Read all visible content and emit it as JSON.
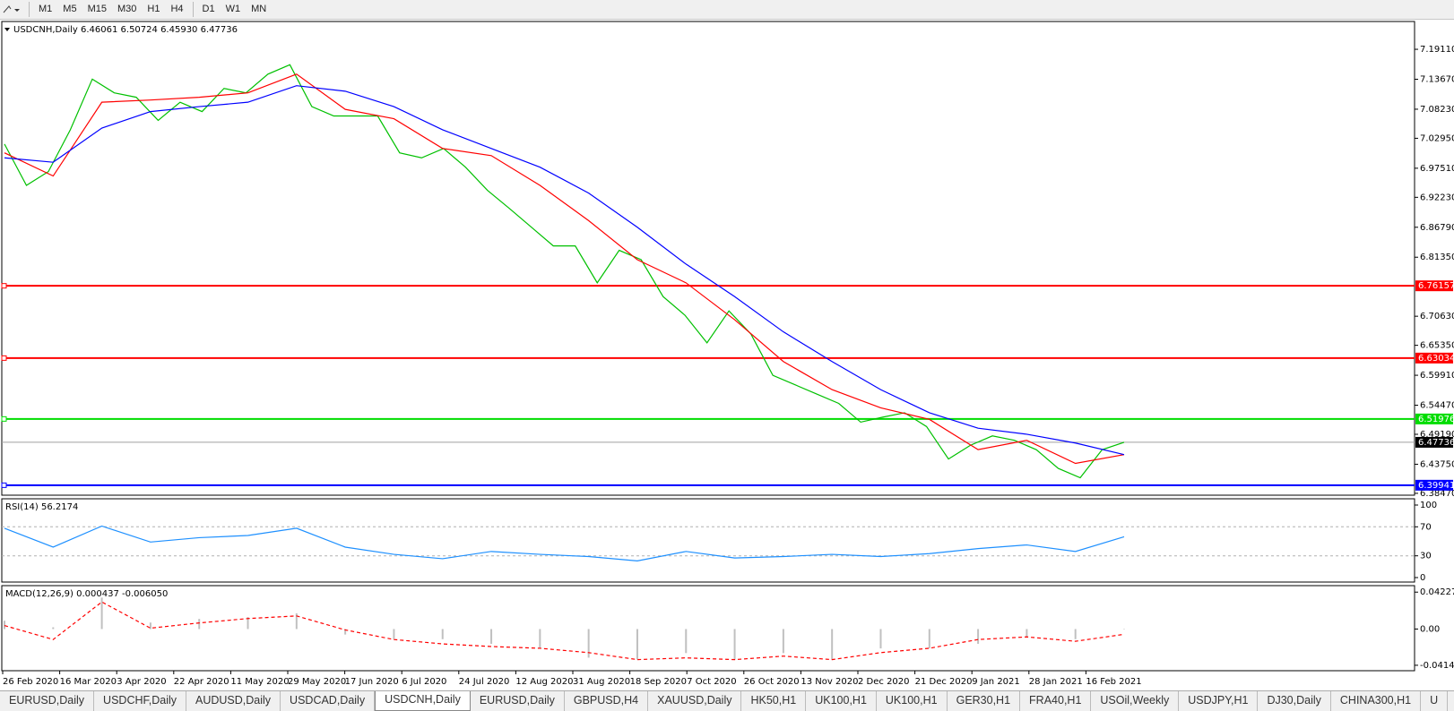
{
  "toolbar": {
    "timeframes": [
      "M1",
      "M5",
      "M15",
      "M30",
      "H1",
      "H4",
      "D1",
      "W1",
      "MN"
    ]
  },
  "time_axis": {
    "labels": [
      "26 Feb 2020",
      "16 Mar 2020",
      "3 Apr 2020",
      "22 Apr 2020",
      "11 May 2020",
      "29 May 2020",
      "17 Jun 2020",
      "6 Jul 2020",
      "24 Jul 2020",
      "12 Aug 2020",
      "31 Aug 2020",
      "18 Sep 2020",
      "7 Oct 2020",
      "26 Oct 2020",
      "13 Nov 2020",
      "2 Dec 2020",
      "21 Dec 2020",
      "9 Jan 2021",
      "28 Jan 2021",
      "16 Feb 2021"
    ]
  },
  "chart_data": [
    {
      "type": "line",
      "title": "USDCNH,Daily",
      "ohlc": "6.46061 6.50724 6.45930 6.47736",
      "ylim": [
        6.3813,
        7.2416
      ],
      "yticks": [
        {
          "value": 7.1911,
          "label": "7.19110"
        },
        {
          "value": 7.1367,
          "label": "7.13670"
        },
        {
          "value": 7.0823,
          "label": "7.08230"
        },
        {
          "value": 7.0295,
          "label": "7.02950"
        },
        {
          "value": 6.9751,
          "label": "6.97510"
        },
        {
          "value": 6.9223,
          "label": "6.92230"
        },
        {
          "value": 6.8679,
          "label": "6.86790"
        },
        {
          "value": 6.8135,
          "label": "6.81350"
        },
        {
          "value": 6.7063,
          "label": "6.70630"
        },
        {
          "value": 6.6535,
          "label": "6.65350"
        },
        {
          "value": 6.5991,
          "label": "6.59910"
        },
        {
          "value": 6.5447,
          "label": "6.54470"
        },
        {
          "value": 6.4919,
          "label": "6.49190"
        },
        {
          "value": 6.4375,
          "label": "6.43750"
        },
        {
          "value": 6.3847,
          "label": "6.38470"
        }
      ],
      "levels": [
        {
          "value": 6.76157,
          "color": "#ff0000"
        },
        {
          "value": 6.63034,
          "color": "#ff0000"
        },
        {
          "value": 6.51976,
          "color": "#00dd00"
        },
        {
          "value": 6.47736,
          "color": "#000000"
        },
        {
          "value": 6.39941,
          "color": "#0000ff"
        }
      ],
      "series": [
        {
          "color": "#00c000",
          "values": [
            7.019,
            6.944,
            6.969,
            7.045,
            7.137,
            7.112,
            7.104,
            7.062,
            7.095,
            7.078,
            7.12,
            7.112,
            7.146,
            7.163,
            7.087,
            7.07,
            7.07,
            7.07,
            7.003,
            6.994,
            7.011,
            6.977,
            6.935,
            6.902,
            6.868,
            6.834,
            6.834,
            6.767,
            6.826,
            6.809,
            6.742,
            6.708,
            6.658,
            6.716,
            6.674,
            6.599,
            6.582,
            6.565,
            6.548,
            6.514,
            6.523,
            6.531,
            6.506,
            6.447,
            6.472,
            6.489,
            6.481,
            6.464,
            6.43,
            6.413,
            6.464,
            6.47736
          ]
        },
        {
          "color": "#ff0000",
          "values": [
            7.003,
            6.961,
            7.095,
            7.099,
            7.104,
            7.112,
            7.146,
            7.082,
            7.065,
            7.011,
            6.998,
            6.944,
            6.88,
            6.809,
            6.767,
            6.7,
            6.624,
            6.573,
            6.54,
            6.519,
            6.464,
            6.481,
            6.439,
            6.455
          ]
        },
        {
          "color": "#0000ff",
          "values": [
            6.994,
            6.986,
            7.048,
            7.078,
            7.087,
            7.095,
            7.125,
            7.115,
            7.087,
            7.045,
            7.011,
            6.977,
            6.93,
            6.868,
            6.801,
            6.742,
            6.678,
            6.624,
            6.573,
            6.531,
            6.503,
            6.492,
            6.476,
            6.455
          ]
        }
      ]
    },
    {
      "type": "line",
      "title": "RSI(14) 56.2174",
      "ylim": [
        0,
        100
      ],
      "yticks": [
        100,
        70,
        30,
        0
      ],
      "levels": [
        {
          "value": 70,
          "color": "#b0b0b0"
        },
        {
          "value": 30,
          "color": "#b0b0b0"
        }
      ],
      "series": [
        {
          "color": "#1e90ff",
          "values": [
            68,
            42,
            71,
            49,
            55,
            58,
            68,
            42,
            32,
            26,
            36,
            32,
            29,
            23,
            36,
            27,
            29,
            32,
            29,
            33,
            40,
            45,
            36,
            56.2174
          ]
        }
      ]
    },
    {
      "type": "macd",
      "title": "MACD(12,26,9) 0.000437 -0.006050",
      "ylim": [
        -0.0477,
        0.0497
      ],
      "yticks": [
        0.042275,
        {
          "value": 0,
          "label": "0.00"
        },
        -0.04148
      ],
      "series": [
        {
          "type": "bar",
          "color": "#c0c0c0",
          "values": [
            0.0095,
            0.002,
            0.036,
            0.0074,
            0.0116,
            0.0137,
            0.018,
            -0.0063,
            -0.0116,
            -0.0116,
            -0.0169,
            -0.0222,
            -0.0328,
            -0.0349,
            -0.0275,
            -0.0349,
            -0.0275,
            -0.0349,
            -0.0222,
            -0.0222,
            -0.0169,
            -0.0095,
            -0.0116,
            0.000437
          ]
        },
        {
          "type": "dashed",
          "color": "#ff0000",
          "values": [
            0.004,
            -0.012,
            0.031,
            0.001,
            0.007,
            0.012,
            0.015,
            -0.001,
            -0.012,
            -0.017,
            -0.02,
            -0.022,
            -0.027,
            -0.035,
            -0.033,
            -0.035,
            -0.031,
            -0.035,
            -0.027,
            -0.022,
            -0.012,
            -0.009,
            -0.014,
            -0.00605
          ]
        }
      ]
    }
  ],
  "tabs": [
    "EURUSD,Daily",
    "USDCHF,Daily",
    "AUDUSD,Daily",
    "USDCAD,Daily",
    "USDCNH,Daily",
    "EURUSD,Daily",
    "GBPUSD,H4",
    "XAUUSD,Daily",
    "HK50,H1",
    "UK100,H1",
    "UK100,H1",
    "GER30,H1",
    "FRA40,H1",
    "USOil,Weekly",
    "USDJPY,H1",
    "DJ30,Daily",
    "CHINA300,H1",
    "U"
  ],
  "active_tab": 4
}
